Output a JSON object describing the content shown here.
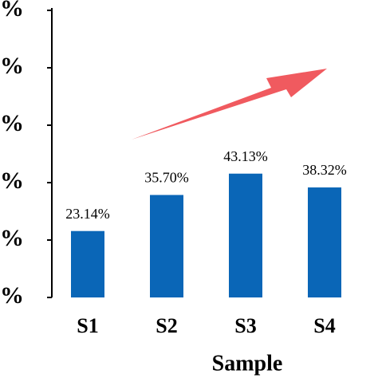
{
  "chart_data": {
    "type": "bar",
    "x_label": "Sample",
    "categories": [
      "S1",
      "S2",
      "S3",
      "S4"
    ],
    "values": [
      23.14,
      35.7,
      43.13,
      38.32
    ],
    "value_labels": [
      "23.14%",
      "35.70%",
      "43.13%",
      "38.32%"
    ],
    "color": "#0a66b7",
    "ylim": [
      0,
      100
    ],
    "yticks": [
      {
        "value": 0,
        "label": "%"
      },
      {
        "value": 20,
        "label": "%"
      },
      {
        "value": 40,
        "label": "%"
      },
      {
        "value": 60,
        "label": "%"
      },
      {
        "value": 80,
        "label": "%"
      },
      {
        "value": 100,
        "label": "%"
      }
    ]
  }
}
